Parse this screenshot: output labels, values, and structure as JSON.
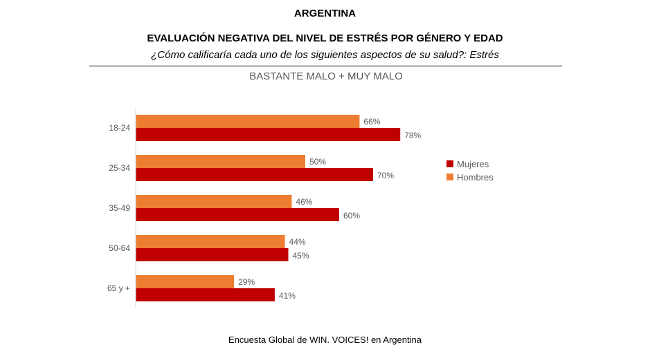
{
  "header": {
    "country": "ARGENTINA",
    "title": "EVALUACIÓN NEGATIVA DEL NIVEL DE ESTRÉS POR GÉNERO Y EDAD",
    "subtitle": "¿Cómo calificaría cada uno de los siguientes aspectos de su salud?: Estrés"
  },
  "footer": {
    "source": "Encuesta Global de WIN. VOICES! en Argentina"
  },
  "colors": {
    "mujeres": "#C00000",
    "hombres": "#ED7D31",
    "axis": "#D9D9D9",
    "text": "#595959"
  },
  "chart_data": {
    "type": "bar",
    "orientation": "horizontal",
    "title": "BASTANTE MALO + MUY MALO",
    "categories": [
      "18-24",
      "25-34",
      "35-49",
      "50-64",
      "65 y +"
    ],
    "series": [
      {
        "name": "Mujeres",
        "values": [
          78,
          70,
          60,
          45,
          41
        ],
        "labels": [
          "78%",
          "70%",
          "60%",
          "45%",
          "41%"
        ]
      },
      {
        "name": "Hombres",
        "values": [
          66,
          50,
          46,
          44,
          29
        ],
        "labels": [
          "66%",
          "50%",
          "46%",
          "44%",
          "29%"
        ]
      }
    ],
    "xlim": [
      0,
      100
    ],
    "grid": false,
    "legend": "right"
  }
}
